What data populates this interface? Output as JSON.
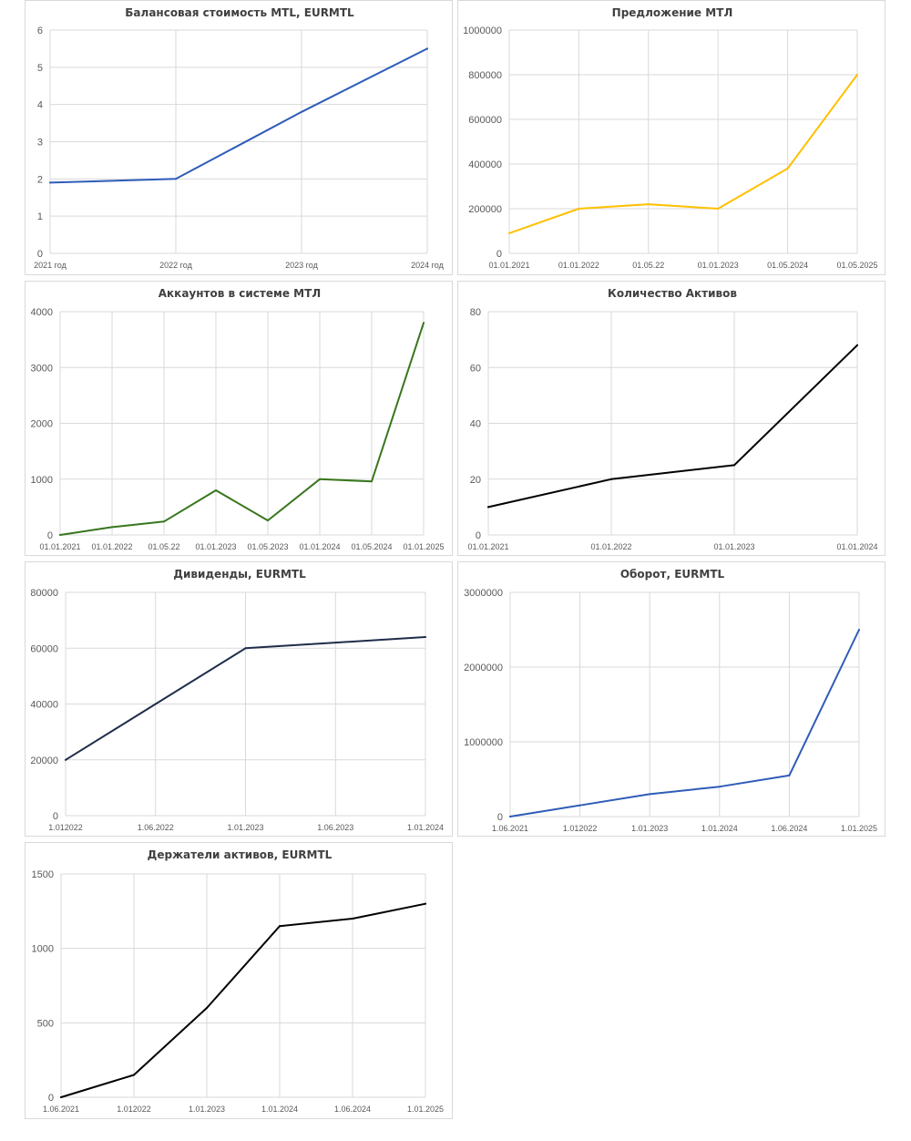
{
  "chart_data": [
    {
      "type": "line",
      "title": "Балансовая стоимость MTL, EURMTL",
      "categories": [
        "2021 год",
        "2022 год",
        "2023 год",
        "2024 год"
      ],
      "values": [
        1.9,
        2.0,
        3.8,
        5.5
      ],
      "ylim": [
        0,
        6
      ],
      "yticks": [
        0,
        1,
        2,
        3,
        4,
        5,
        6
      ],
      "color": "#2e5cb8",
      "grid": true
    },
    {
      "type": "line",
      "title": "Предложение МТЛ",
      "categories": [
        "01.01.2021",
        "01.01.2022",
        "01.05.22",
        "01.01.2023",
        "01.05.2024",
        "01.05.2025"
      ],
      "values": [
        90000,
        200000,
        220000,
        200000,
        380000,
        800000
      ],
      "ylim": [
        0,
        1000000
      ],
      "yticks": [
        0,
        200000,
        400000,
        600000,
        800000,
        1000000
      ],
      "color": "#ffc000",
      "grid": true
    },
    {
      "type": "line",
      "title": "Аккаунтов в системе МТЛ",
      "categories": [
        "01.01.2021",
        "01.01.2022",
        "01.05.22",
        "01.01.2023",
        "01.05.2023",
        "01.01.2024",
        "01.05.2024",
        "01.01.2025"
      ],
      "values": [
        0,
        140,
        240,
        800,
        260,
        1000,
        960,
        3800
      ],
      "ylim": [
        0,
        4000
      ],
      "yticks": [
        0,
        1000,
        2000,
        3000,
        4000
      ],
      "color": "#38761d",
      "grid": true
    },
    {
      "type": "line",
      "title": "Количество Активов",
      "categories": [
        "01.01.2021",
        "01.01.2022",
        "01.01.2023",
        "01.01.2024"
      ],
      "values": [
        10,
        20,
        25,
        68
      ],
      "ylim": [
        0,
        80
      ],
      "yticks": [
        0,
        20,
        40,
        60,
        80
      ],
      "color": "#000000",
      "grid": true
    },
    {
      "type": "line",
      "title": "Дивиденды, EURMTL",
      "categories": [
        "1.012022",
        "1.06.2022",
        "1.01.2023",
        "1.06.2023",
        "1.01.2024"
      ],
      "values": [
        20000,
        40000,
        60000,
        62000,
        64000
      ],
      "ylim": [
        0,
        80000
      ],
      "yticks": [
        0,
        20000,
        40000,
        60000,
        80000
      ],
      "color": "#1f2d4a",
      "grid": true
    },
    {
      "type": "line",
      "title": "Оборот, EURMTL",
      "categories": [
        "1.06.2021",
        "1.012022",
        "1.01.2023",
        "1.01.2024",
        "1.06.2024",
        "1.01.2025"
      ],
      "values": [
        0,
        150000,
        300000,
        400000,
        550000,
        2500000
      ],
      "ylim": [
        0,
        3000000
      ],
      "yticks": [
        0,
        1000000,
        2000000,
        3000000
      ],
      "color": "#2e5cb8",
      "grid": true
    },
    {
      "type": "line",
      "title": "Держатели активов, EURMTL",
      "categories": [
        "1.06.2021",
        "1.012022",
        "1.01.2023",
        "1.01.2024",
        "1.06.2024",
        "1.01.2025"
      ],
      "values": [
        0,
        150,
        600,
        1150,
        1200,
        1300
      ],
      "ylim": [
        0,
        1500
      ],
      "yticks": [
        0,
        500,
        1000,
        1500
      ],
      "color": "#000000",
      "grid": true
    }
  ]
}
